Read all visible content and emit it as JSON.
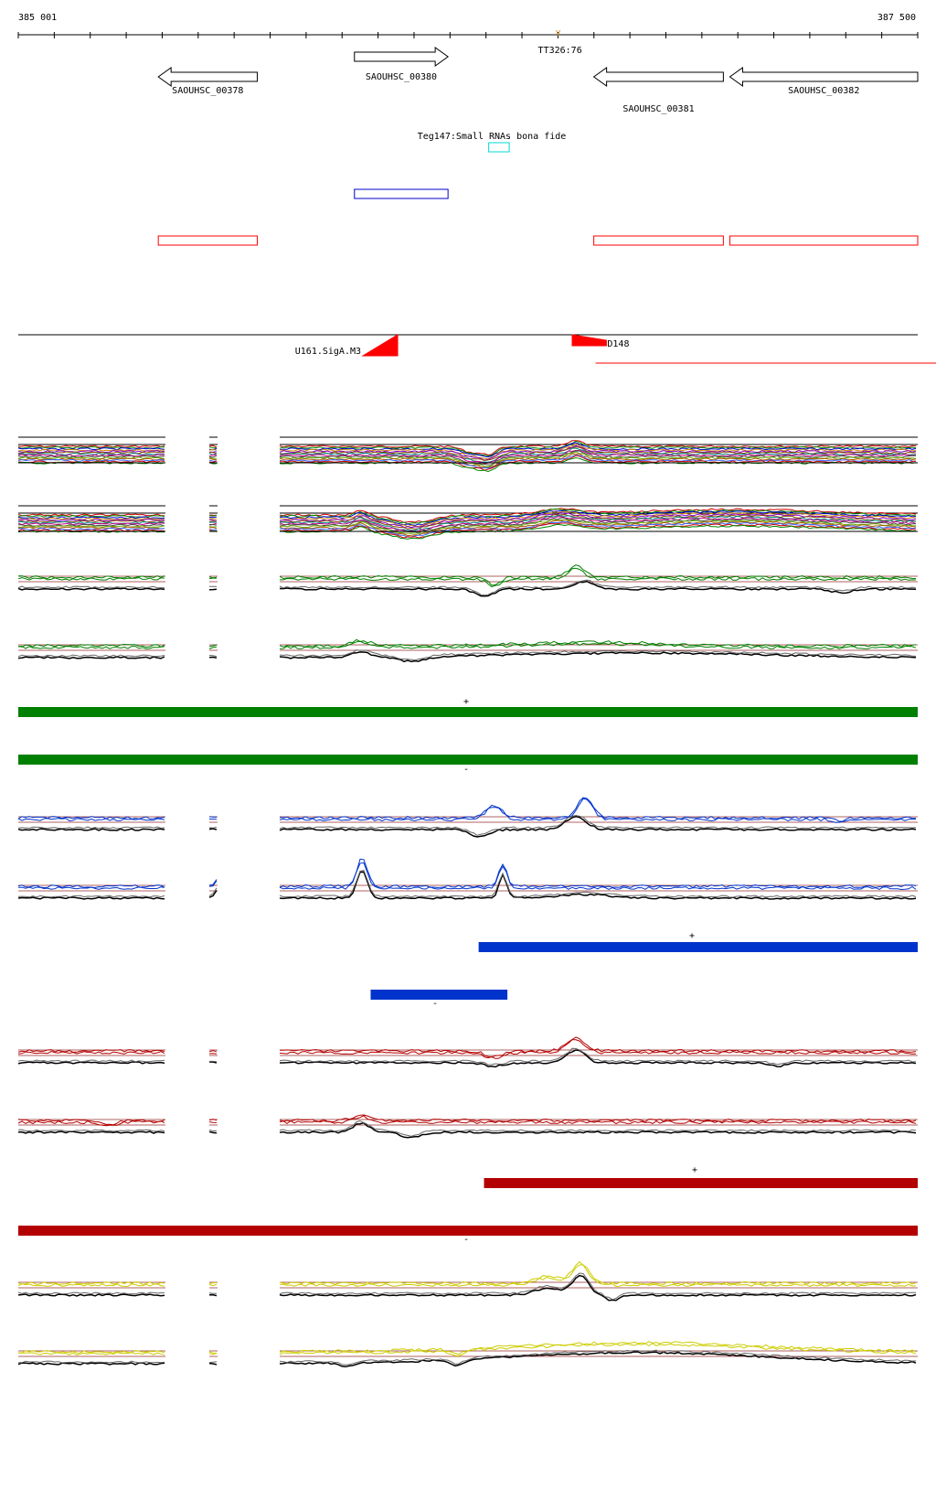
{
  "ruler": {
    "start_label": "385 001",
    "end_label": "387 500",
    "start": 385001,
    "end": 387500,
    "terminator_label": "TT326:76",
    "terminator_pos": 386501
  },
  "genes": [
    {
      "id": "gene-sa0uhsc-00378",
      "label": "SAOUHSC_00378",
      "start": 385390,
      "end": 385665,
      "strand": "-",
      "row": 1
    },
    {
      "id": "gene-sa0uhsc-00380",
      "label": "SAOUHSC_00380",
      "start": 385935,
      "end": 386195,
      "strand": "+",
      "row": 0
    },
    {
      "id": "gene-sa0uhsc-00381",
      "label": "SAOUHSC_00381",
      "start": 386600,
      "end": 386960,
      "strand": "-",
      "row": 1,
      "label_below": true
    },
    {
      "id": "gene-sa0uhsc-00382",
      "label": "SAOUHSC_00382",
      "start": 386978,
      "end": 387500,
      "strand": "-",
      "row": 1
    }
  ],
  "small_rna": {
    "label": "Teg147:Small RNAs bona fide",
    "start": 386308,
    "end": 386365,
    "color": "#00d8d8"
  },
  "cds_plus": [
    {
      "start": 385935,
      "end": 386195
    }
  ],
  "cds_minus": [
    {
      "start": 385390,
      "end": 385665
    },
    {
      "start": 386600,
      "end": 386960
    },
    {
      "start": 386978,
      "end": 387500
    }
  ],
  "features": {
    "u161": {
      "label": "U161.SigA.M3",
      "pos": 386055
    },
    "d148": {
      "label": "D148",
      "start": 386540,
      "end": 386635
    },
    "red_line_start": 386605
  },
  "tracks": {
    "heatmap_a_label": "",
    "heatmap_b_label": "",
    "green_plus_label": "+",
    "green_minus_label": "-",
    "blue_plus_label": "+",
    "blue_minus_label": "-",
    "red_plus_label": "+",
    "red_minus_label": "-"
  },
  "segments": {
    "green_plus": {
      "start": 385001,
      "end": 387500
    },
    "green_minus": {
      "start": 385001,
      "end": 387500
    },
    "blue_plus": {
      "start": 386280,
      "end": 387500
    },
    "blue_minus": {
      "start": 385980,
      "end": 386360
    },
    "red_plus": {
      "start": 386295,
      "end": 387500
    },
    "red_minus": {
      "start": 385001,
      "end": 387500
    }
  },
  "colors": {
    "green": "#008000",
    "blue": "#0033cc",
    "red": "#b30000",
    "feature_red": "#ff0000",
    "cds_blue": "#0000cc",
    "yellow": "#cccc00"
  }
}
